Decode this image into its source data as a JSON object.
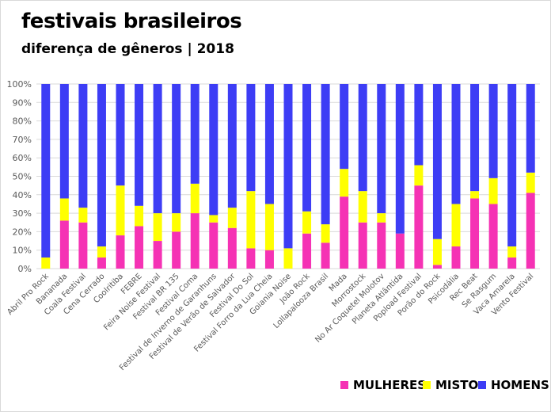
{
  "title": "festivais brasileiros",
  "subtitle": "diferença de gêneros | 2018",
  "colors": {
    "mulheres": "#F532B4",
    "misto": "#FFFF00",
    "homens": "#3D3DF5",
    "grid": "#d9d9d9",
    "axis_text": "#595959"
  },
  "legend": {
    "mulheres": "MULHERES",
    "misto": "MISTO",
    "homens": "HOMENS"
  },
  "chart_data": {
    "type": "bar",
    "stacked": true,
    "percent": true,
    "ylim": [
      0,
      100
    ],
    "yticks": [
      "0%",
      "10%",
      "20%",
      "30%",
      "40%",
      "50%",
      "60%",
      "70%",
      "80%",
      "90%",
      "100%"
    ],
    "grid": true,
    "legend_position": "bottom-right",
    "categories": [
      "Abril Pro Rock",
      "Bananada",
      "Coala Festival",
      "Cena Cerrado",
      "Coolritiba",
      "FEBRE",
      "Feira Noise Festival",
      "Festival BR 135",
      "Festival Coma",
      "Festival de Inverno de Garanhuns",
      "Festival de Verão de Salvador",
      "Festival Do Sol",
      "Festival Forro da Lua Cheia",
      "Goiania Noise",
      "João Rock",
      "Lollapalooza Brasil",
      "Mada",
      "Morrostock",
      "No Ar Coquetel Molotov",
      "Planeta Atlântida",
      "Popload Festival",
      "Porão do Rock",
      "Psicodália",
      "Rec Beat",
      "Se Rasgum",
      "Vaca Amarela",
      "Vento Festival"
    ],
    "series": [
      {
        "name": "MULHERES",
        "values": [
          0,
          26,
          25,
          6,
          18,
          23,
          15,
          20,
          30,
          25,
          22,
          11,
          10,
          0,
          19,
          14,
          39,
          25,
          25,
          19,
          45,
          2,
          12,
          38,
          35,
          6,
          41
        ]
      },
      {
        "name": "MISTO",
        "values": [
          6,
          12,
          8,
          6,
          27,
          11,
          15,
          10,
          16,
          4,
          11,
          31,
          25,
          11,
          12,
          10,
          15,
          17,
          5,
          0,
          11,
          14,
          23,
          4,
          14,
          6,
          11
        ]
      },
      {
        "name": "HOMENS",
        "values": [
          94,
          62,
          67,
          88,
          55,
          66,
          70,
          70,
          54,
          71,
          67,
          58,
          65,
          89,
          69,
          76,
          46,
          58,
          70,
          81,
          44,
          84,
          65,
          58,
          51,
          88,
          48
        ]
      }
    ]
  }
}
